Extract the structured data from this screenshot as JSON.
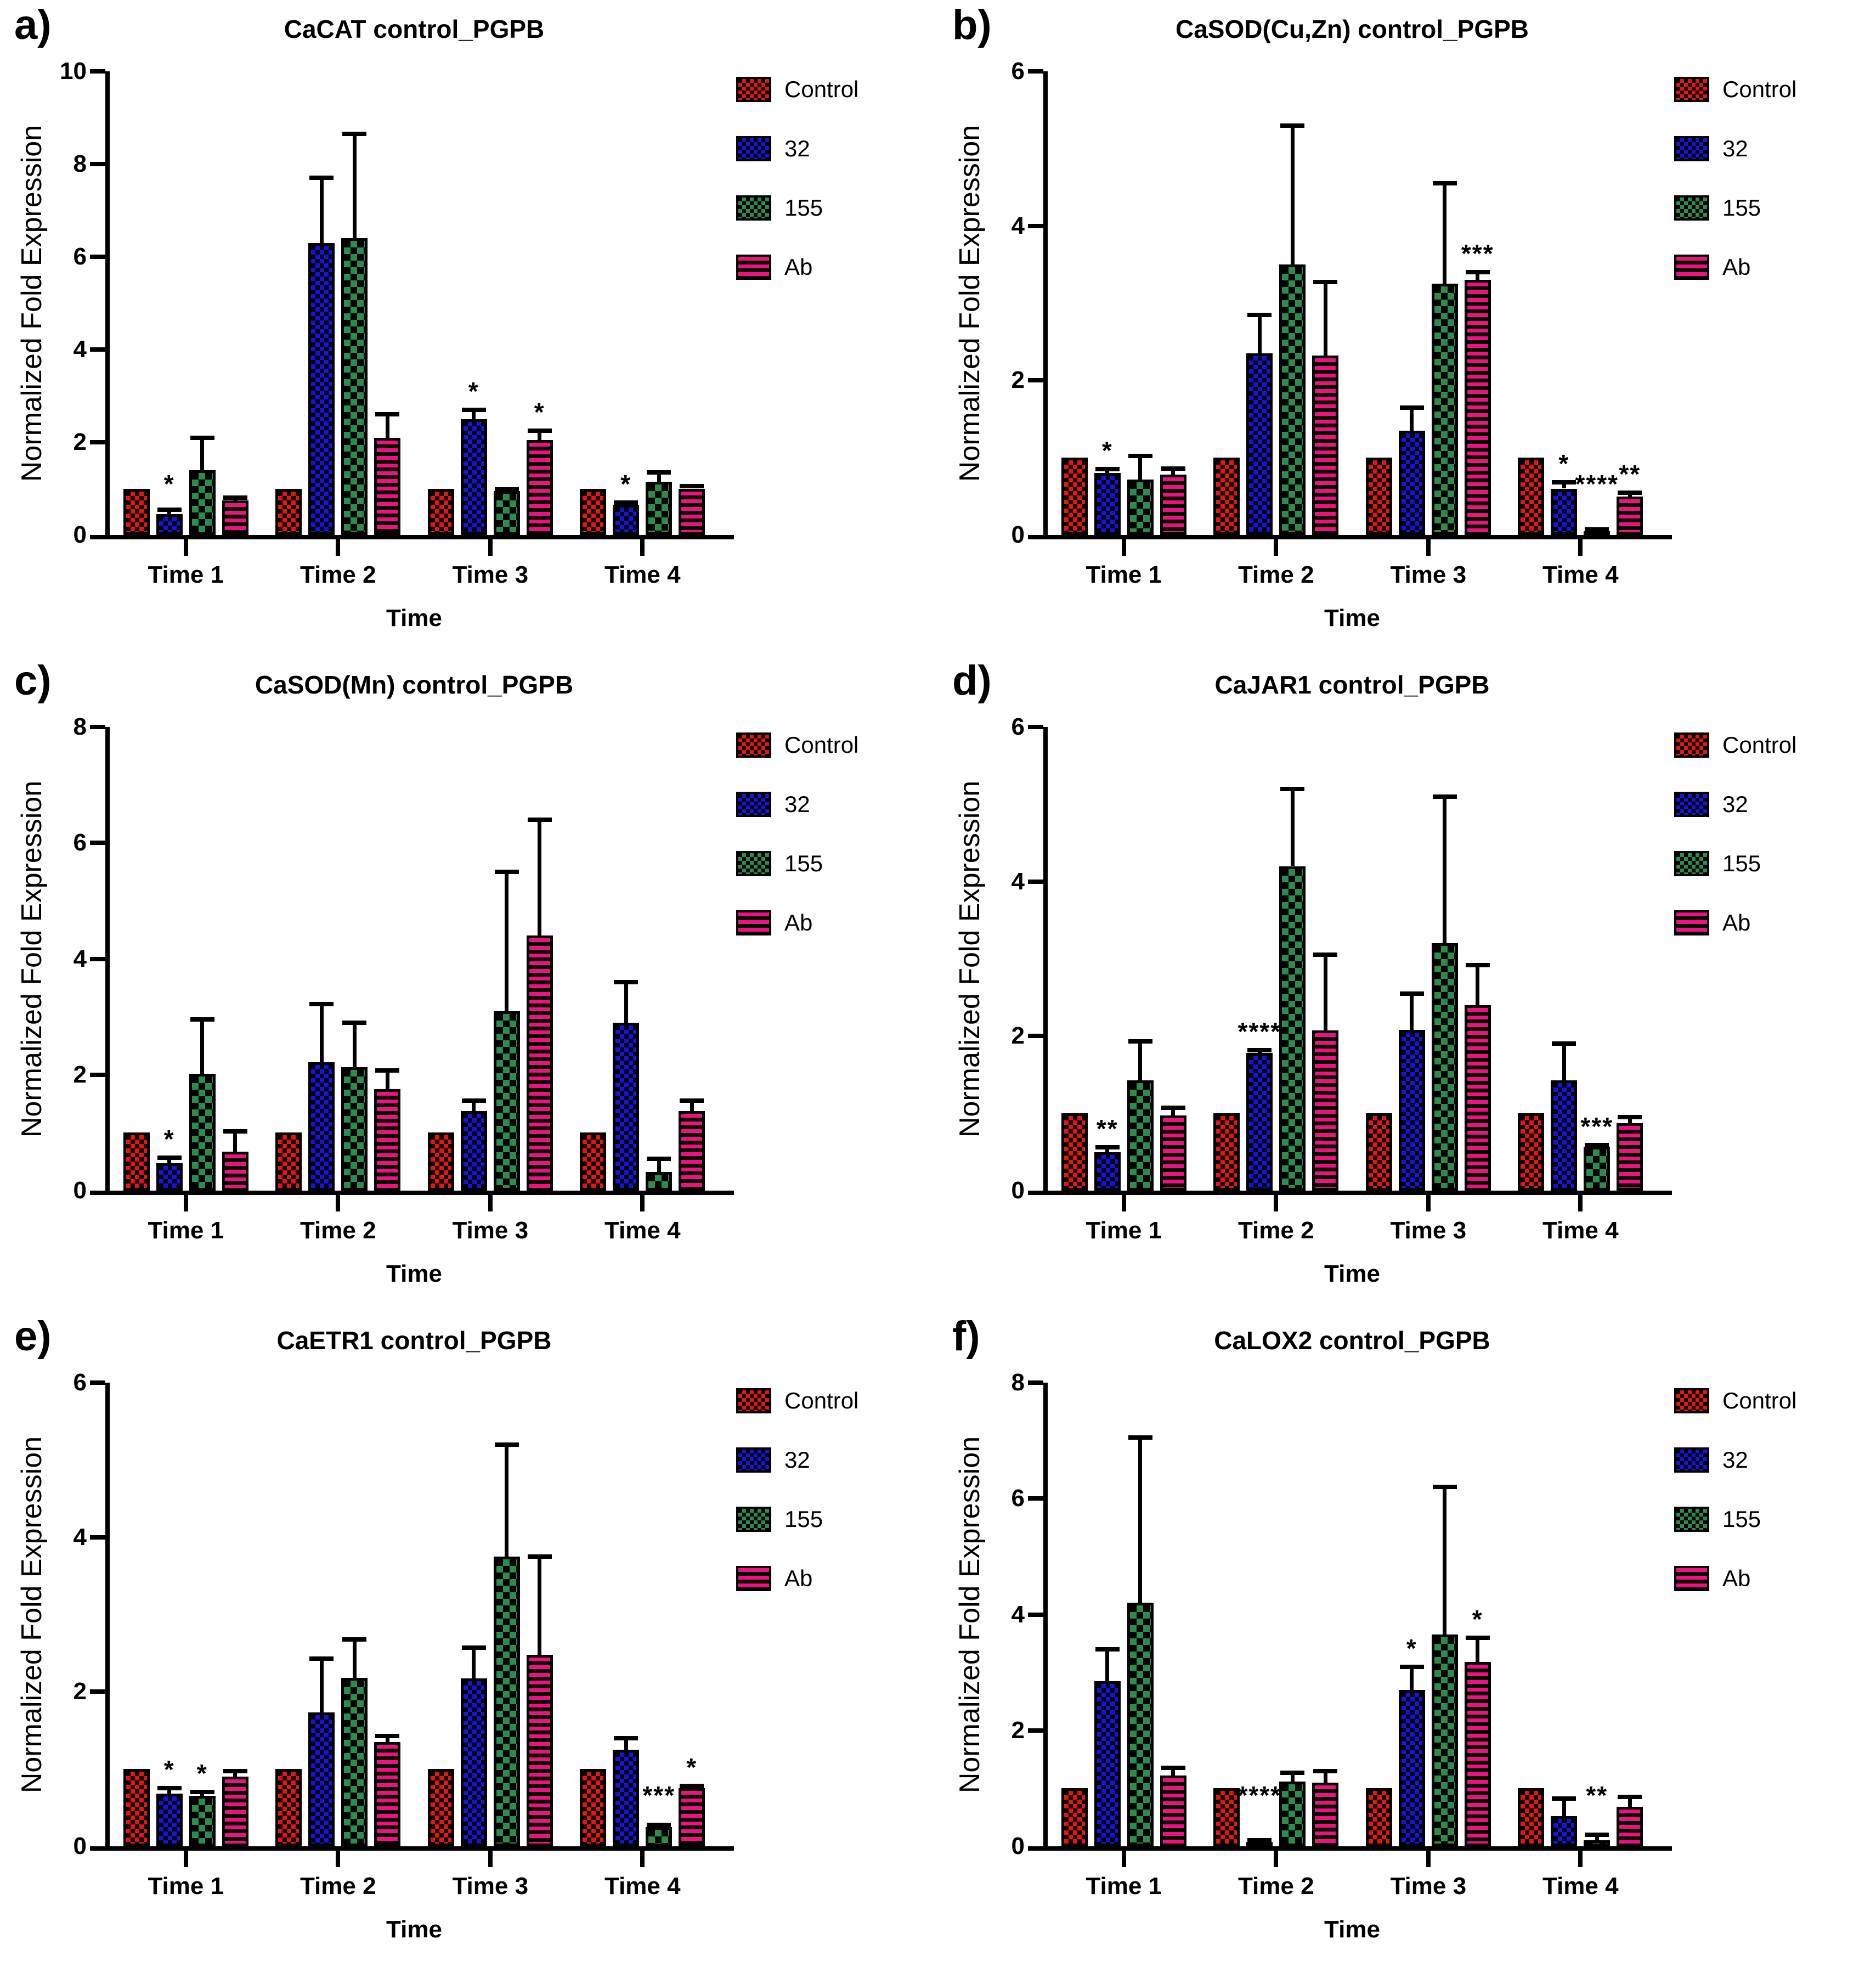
{
  "figure": {
    "background": "#ffffff",
    "ylabel": "Normalized Fold Expression",
    "xlabel": "Time",
    "series_styles": [
      {
        "label": "Control",
        "color": "#e81412",
        "pattern": "checker",
        "tile": 16
      },
      {
        "label": "32",
        "color": "#1513e0",
        "pattern": "checker",
        "tile": 16
      },
      {
        "label": "155",
        "color": "#2d8b4e",
        "pattern": "checker",
        "tile": 24
      },
      {
        "label": "Ab",
        "color": "#f0107e",
        "pattern": "hstripes",
        "tile": 14
      }
    ],
    "legend_position": "right"
  },
  "chart_data": [
    {
      "panel": "a)",
      "type": "bar",
      "title": "CaCAT control_PGPB",
      "xlabel": "Time",
      "ylabel": "Normalized Fold Expression",
      "categories": [
        "Time 1",
        "Time 2",
        "Time 3",
        "Time 4"
      ],
      "ylim": [
        0,
        10
      ],
      "yticks": [
        0,
        2,
        4,
        6,
        8,
        10
      ],
      "grid": false,
      "series": [
        {
          "name": "Control",
          "values": [
            1.0,
            1.0,
            1.0,
            1.0
          ],
          "errors": [
            0,
            0,
            0,
            0
          ]
        },
        {
          "name": "32",
          "values": [
            0.45,
            6.3,
            2.5,
            0.65
          ],
          "errors": [
            0.1,
            1.4,
            0.2,
            0.05
          ]
        },
        {
          "name": "155",
          "values": [
            1.4,
            6.4,
            0.95,
            1.15
          ],
          "errors": [
            0.7,
            2.25,
            0.03,
            0.2
          ]
        },
        {
          "name": "Ab",
          "values": [
            0.75,
            2.1,
            2.05,
            1.0
          ],
          "errors": [
            0.05,
            0.5,
            0.2,
            0.05
          ]
        }
      ],
      "significance": [
        {
          "category": 0,
          "series": 1,
          "stars": "*"
        },
        {
          "category": 2,
          "series": 1,
          "stars": "*"
        },
        {
          "category": 2,
          "series": 3,
          "stars": "*"
        },
        {
          "category": 3,
          "series": 1,
          "stars": "*"
        }
      ]
    },
    {
      "panel": "b)",
      "type": "bar",
      "title": "CaSOD(Cu,Zn) control_PGPB",
      "xlabel": "Time",
      "ylabel": "Normalized Fold Expression",
      "categories": [
        "Time 1",
        "Time 2",
        "Time 3",
        "Time 4"
      ],
      "ylim": [
        0,
        6
      ],
      "yticks": [
        0,
        2,
        4,
        6
      ],
      "grid": false,
      "series": [
        {
          "name": "Control",
          "values": [
            1.0,
            1.0,
            1.0,
            1.0
          ],
          "errors": [
            0,
            0,
            0,
            0
          ]
        },
        {
          "name": "32",
          "values": [
            0.8,
            2.35,
            1.35,
            0.6
          ],
          "errors": [
            0.05,
            0.5,
            0.3,
            0.08
          ]
        },
        {
          "name": "155",
          "values": [
            0.72,
            3.5,
            3.25,
            0.05
          ],
          "errors": [
            0.3,
            1.8,
            1.3,
            0.02
          ]
        },
        {
          "name": "Ab",
          "values": [
            0.78,
            2.32,
            3.3,
            0.5
          ],
          "errors": [
            0.08,
            0.95,
            0.1,
            0.05
          ]
        }
      ],
      "significance": [
        {
          "category": 0,
          "series": 1,
          "stars": "*"
        },
        {
          "category": 2,
          "series": 3,
          "stars": "***"
        },
        {
          "category": 3,
          "series": 1,
          "stars": "*"
        },
        {
          "category": 3,
          "series": 2,
          "stars": "****"
        },
        {
          "category": 3,
          "series": 3,
          "stars": "**"
        }
      ]
    },
    {
      "panel": "c)",
      "type": "bar",
      "title": "CaSOD(Mn) control_PGPB",
      "xlabel": "Time",
      "ylabel": "Normalized Fold Expression",
      "categories": [
        "Time 1",
        "Time 2",
        "Time 3",
        "Time 4"
      ],
      "ylim": [
        0,
        8
      ],
      "yticks": [
        0,
        2,
        4,
        6,
        8
      ],
      "grid": false,
      "series": [
        {
          "name": "Control",
          "values": [
            1.0,
            1.0,
            1.0,
            1.0
          ],
          "errors": [
            0,
            0,
            0,
            0
          ]
        },
        {
          "name": "32",
          "values": [
            0.47,
            2.22,
            1.37,
            2.9
          ],
          "errors": [
            0.1,
            1.0,
            0.18,
            0.7
          ]
        },
        {
          "name": "155",
          "values": [
            2.02,
            2.13,
            3.1,
            0.32
          ],
          "errors": [
            0.93,
            0.77,
            2.4,
            0.23
          ]
        },
        {
          "name": "Ab",
          "values": [
            0.67,
            1.75,
            4.4,
            1.37
          ],
          "errors": [
            0.35,
            0.32,
            2.0,
            0.18
          ]
        }
      ],
      "significance": [
        {
          "category": 0,
          "series": 1,
          "stars": "*"
        }
      ]
    },
    {
      "panel": "d)",
      "type": "bar",
      "title": "CaJAR1 control_PGPB",
      "xlabel": "Time",
      "ylabel": "Normalized Fold Expression",
      "categories": [
        "Time 1",
        "Time 2",
        "Time 3",
        "Time 4"
      ],
      "ylim": [
        0,
        6
      ],
      "yticks": [
        0,
        2,
        4,
        6
      ],
      "grid": false,
      "series": [
        {
          "name": "Control",
          "values": [
            1.0,
            1.0,
            1.0,
            1.0
          ],
          "errors": [
            0,
            0,
            0,
            0
          ]
        },
        {
          "name": "32",
          "values": [
            0.5,
            1.78,
            2.08,
            1.43
          ],
          "errors": [
            0.06,
            0.04,
            0.47,
            0.47
          ]
        },
        {
          "name": "155",
          "values": [
            1.43,
            4.2,
            3.2,
            0.57
          ],
          "errors": [
            0.5,
            1.0,
            1.9,
            0.02
          ]
        },
        {
          "name": "Ab",
          "values": [
            0.97,
            2.07,
            2.4,
            0.87
          ],
          "errors": [
            0.1,
            0.98,
            0.52,
            0.08
          ]
        }
      ],
      "significance": [
        {
          "category": 0,
          "series": 1,
          "stars": "**"
        },
        {
          "category": 1,
          "series": 1,
          "stars": "****"
        },
        {
          "category": 3,
          "series": 2,
          "stars": "***"
        }
      ]
    },
    {
      "panel": "e)",
      "type": "bar",
      "title": "CaETR1 control_PGPB",
      "xlabel": "Time",
      "ylabel": "Normalized Fold Expression",
      "categories": [
        "Time 1",
        "Time 2",
        "Time 3",
        "Time 4"
      ],
      "ylim": [
        0,
        6
      ],
      "yticks": [
        0,
        2,
        4,
        6
      ],
      "grid": false,
      "series": [
        {
          "name": "Control",
          "values": [
            1.0,
            1.0,
            1.0,
            1.0
          ],
          "errors": [
            0,
            0,
            0,
            0
          ]
        },
        {
          "name": "32",
          "values": [
            0.68,
            1.73,
            2.17,
            1.25
          ],
          "errors": [
            0.07,
            0.7,
            0.4,
            0.15
          ]
        },
        {
          "name": "155",
          "values": [
            0.65,
            2.18,
            3.75,
            0.25
          ],
          "errors": [
            0.05,
            0.5,
            1.45,
            0.03
          ]
        },
        {
          "name": "Ab",
          "values": [
            0.9,
            1.35,
            2.48,
            0.75
          ],
          "errors": [
            0.07,
            0.08,
            1.27,
            0.03
          ]
        }
      ],
      "significance": [
        {
          "category": 0,
          "series": 1,
          "stars": "*"
        },
        {
          "category": 0,
          "series": 2,
          "stars": "*"
        },
        {
          "category": 3,
          "series": 2,
          "stars": "***"
        },
        {
          "category": 3,
          "series": 3,
          "stars": "*"
        }
      ]
    },
    {
      "panel": "f)",
      "type": "bar",
      "title": "CaLOX2 control_PGPB",
      "xlabel": "Time",
      "ylabel": "Normalized Fold Expression",
      "categories": [
        "Time 1",
        "Time 2",
        "Time 3",
        "Time 4"
      ],
      "ylim": [
        0,
        8
      ],
      "yticks": [
        0,
        2,
        4,
        6,
        8
      ],
      "grid": false,
      "series": [
        {
          "name": "Control",
          "values": [
            1.0,
            1.0,
            1.0,
            1.0
          ],
          "errors": [
            0,
            0,
            0,
            0
          ]
        },
        {
          "name": "32",
          "values": [
            2.85,
            0.08,
            2.7,
            0.52
          ],
          "errors": [
            0.55,
            0.02,
            0.4,
            0.3
          ]
        },
        {
          "name": "155",
          "values": [
            4.2,
            1.12,
            3.65,
            0.1
          ],
          "errors": [
            2.85,
            0.15,
            2.55,
            0.1
          ]
        },
        {
          "name": "Ab",
          "values": [
            1.22,
            1.1,
            3.18,
            0.68
          ],
          "errors": [
            0.13,
            0.2,
            0.42,
            0.17
          ]
        }
      ],
      "significance": [
        {
          "category": 1,
          "series": 1,
          "stars": "****"
        },
        {
          "category": 2,
          "series": 1,
          "stars": "*"
        },
        {
          "category": 2,
          "series": 3,
          "stars": "*"
        },
        {
          "category": 3,
          "series": 2,
          "stars": "**"
        }
      ]
    }
  ]
}
